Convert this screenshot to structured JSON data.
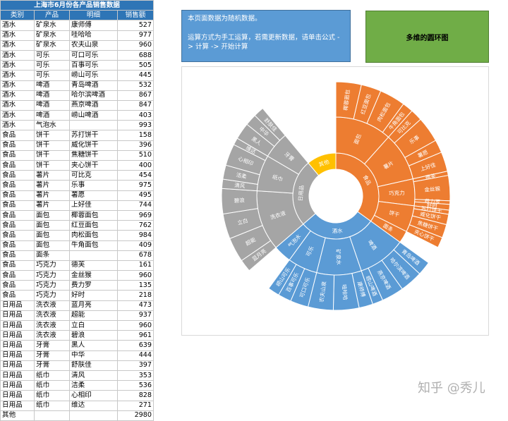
{
  "sheet": {
    "title": "上海市6月份各产品销售数据",
    "headers": [
      "类别",
      "产品",
      "明细",
      "销售额"
    ],
    "rows": [
      [
        "酒水",
        "矿泉水",
        "康师傅",
        "527"
      ],
      [
        "酒水",
        "矿泉水",
        "哇哈哈",
        "977"
      ],
      [
        "酒水",
        "矿泉水",
        "农夫山泉",
        "960"
      ],
      [
        "酒水",
        "可乐",
        "可口可乐",
        "688"
      ],
      [
        "酒水",
        "可乐",
        "百事可乐",
        "505"
      ],
      [
        "酒水",
        "可乐",
        "崂山可乐",
        "445"
      ],
      [
        "酒水",
        "啤酒",
        "青岛啤酒",
        "532"
      ],
      [
        "酒水",
        "啤酒",
        "哈尔滨啤酒",
        "867"
      ],
      [
        "酒水",
        "啤酒",
        "燕京啤酒",
        "847"
      ],
      [
        "酒水",
        "啤酒",
        "崂山啤酒",
        "403"
      ],
      [
        "酒水",
        "气泡水",
        "",
        "993"
      ],
      [
        "食品",
        "饼干",
        "苏打饼干",
        "158"
      ],
      [
        "食品",
        "饼干",
        "威化饼干",
        "396"
      ],
      [
        "食品",
        "饼干",
        "焦糖饼干",
        "510"
      ],
      [
        "食品",
        "饼干",
        "夹心饼干",
        "400"
      ],
      [
        "食品",
        "薯片",
        "可比克",
        "454"
      ],
      [
        "食品",
        "薯片",
        "乐事",
        "975"
      ],
      [
        "食品",
        "薯片",
        "薯愿",
        "495"
      ],
      [
        "食品",
        "薯片",
        "上好佳",
        "744"
      ],
      [
        "食品",
        "面包",
        "椰蓉面包",
        "969"
      ],
      [
        "食品",
        "面包",
        "红豆面包",
        "762"
      ],
      [
        "食品",
        "面包",
        "肉松面包",
        "984"
      ],
      [
        "食品",
        "面包",
        "牛角面包",
        "409"
      ],
      [
        "食品",
        "面条",
        "",
        "678"
      ],
      [
        "食品",
        "巧克力",
        "德芙",
        "161"
      ],
      [
        "食品",
        "巧克力",
        "金丝猴",
        "960"
      ],
      [
        "食品",
        "巧克力",
        "费力罗",
        "135"
      ],
      [
        "食品",
        "巧克力",
        "好时",
        "218"
      ],
      [
        "日用品",
        "洗衣液",
        "蓝月亮",
        "473"
      ],
      [
        "日用品",
        "洗衣液",
        "超能",
        "937"
      ],
      [
        "日用品",
        "洗衣液",
        "立白",
        "960"
      ],
      [
        "日用品",
        "洗衣液",
        "碧浪",
        "961"
      ],
      [
        "日用品",
        "牙膏",
        "黑人",
        "639"
      ],
      [
        "日用品",
        "牙膏",
        "中华",
        "444"
      ],
      [
        "日用品",
        "牙膏",
        "舒肤佳",
        "397"
      ],
      [
        "日用品",
        "纸巾",
        "清风",
        "353"
      ],
      [
        "日用品",
        "纸巾",
        "洁柔",
        "536"
      ],
      [
        "日用品",
        "纸巾",
        "心相印",
        "828"
      ],
      [
        "日用品",
        "纸巾",
        "维达",
        "271"
      ]
    ],
    "other_label": "其他",
    "other_value": "2980"
  },
  "note": {
    "line1": "本页面数据为随机数据。",
    "line2": "运算方式为手工运算，若需更新数据，请单击公式 -> 计算 -> 开始计算"
  },
  "button": {
    "label": "多维的圆环图"
  },
  "colors": {
    "酒水": "#5b9bd5",
    "食品": "#ed7d31",
    "日用品": "#a5a5a5",
    "其他": "#ffc000"
  },
  "chart_data": {
    "type": "sunburst",
    "start_order": [
      "食品",
      "酒水",
      "日用品",
      "其他"
    ],
    "categories": [
      {
        "name": "食品",
        "children": [
          {
            "name": "面包",
            "children": [
              {
                "name": "椰蓉面包",
                "value": 969
              },
              {
                "name": "红豆面包",
                "value": 762
              },
              {
                "name": "肉松面包",
                "value": 984
              },
              {
                "name": "牛角面包",
                "value": 409
              }
            ]
          },
          {
            "name": "薯片",
            "children": [
              {
                "name": "可比克",
                "value": 454
              },
              {
                "name": "乐事",
                "value": 975
              },
              {
                "name": "薯愿",
                "value": 495
              },
              {
                "name": "上好佳",
                "value": 744
              }
            ]
          },
          {
            "name": "巧克力",
            "children": [
              {
                "name": "德芙",
                "value": 161
              },
              {
                "name": "金丝猴",
                "value": 960
              },
              {
                "name": "费力罗",
                "value": 135
              },
              {
                "name": "好时",
                "value": 218
              }
            ]
          },
          {
            "name": "饼干",
            "children": [
              {
                "name": "苏打饼干",
                "value": 158
              },
              {
                "name": "威化饼干",
                "value": 396
              },
              {
                "name": "焦糖饼干",
                "value": 510
              },
              {
                "name": "夹心饼干",
                "value": 400
              }
            ]
          },
          {
            "name": "面条",
            "value": 678
          }
        ]
      },
      {
        "name": "酒水",
        "children": [
          {
            "name": "啤酒",
            "children": [
              {
                "name": "青岛啤酒",
                "value": 532
              },
              {
                "name": "哈尔滨啤酒",
                "value": 867
              },
              {
                "name": "燕京啤酒",
                "value": 847
              },
              {
                "name": "崂山啤酒",
                "value": 403
              }
            ]
          },
          {
            "name": "矿泉水",
            "children": [
              {
                "name": "康师傅",
                "value": 527
              },
              {
                "name": "哇哈哈",
                "value": 977
              },
              {
                "name": "农夫山泉",
                "value": 960
              }
            ]
          },
          {
            "name": "可乐",
            "children": [
              {
                "name": "可口可乐",
                "value": 688
              },
              {
                "name": "百事可乐",
                "value": 505
              },
              {
                "name": "崂山可乐",
                "value": 445
              }
            ]
          },
          {
            "name": "气泡水",
            "value": 993
          }
        ]
      },
      {
        "name": "日用品",
        "children": [
          {
            "name": "洗衣液",
            "children": [
              {
                "name": "蓝月亮",
                "value": 473
              },
              {
                "name": "超能",
                "value": 937
              },
              {
                "name": "立白",
                "value": 960
              },
              {
                "name": "碧浪",
                "value": 961
              }
            ]
          },
          {
            "name": "纸巾",
            "children": [
              {
                "name": "清风",
                "value": 353
              },
              {
                "name": "洁柔",
                "value": 536
              },
              {
                "name": "心相印",
                "value": 828
              },
              {
                "name": "维达",
                "value": 271
              }
            ]
          },
          {
            "name": "牙膏",
            "children": [
              {
                "name": "黑人",
                "value": 639
              },
              {
                "name": "中华",
                "value": 444
              },
              {
                "name": "舒肤佳",
                "value": 397
              }
            ]
          }
        ]
      },
      {
        "name": "其他",
        "value": 2980
      }
    ]
  },
  "watermark": "知乎 @秀儿"
}
